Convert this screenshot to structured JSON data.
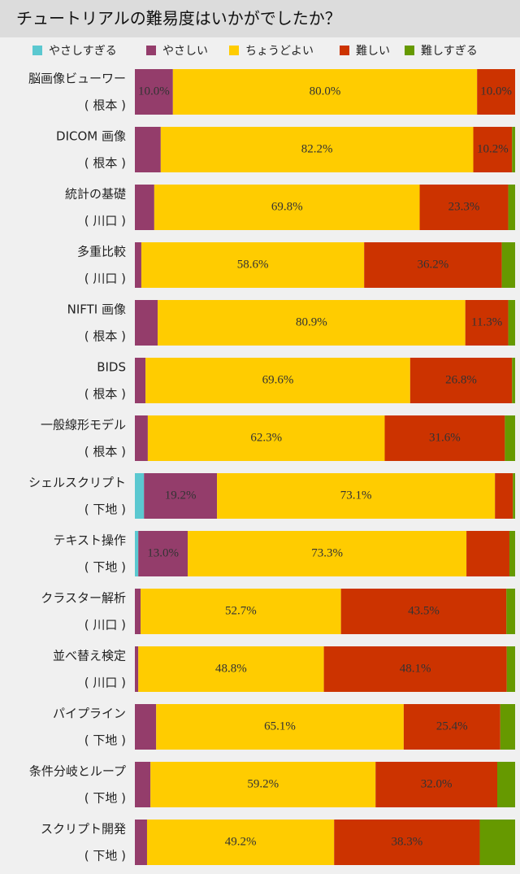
{
  "chart_data": {
    "type": "stacked_barh",
    "title": "チュートリアルの難易度はいかがでしたか？",
    "categories": [
      "脳画像ビューワー",
      "DICOM 画像",
      "統計の基礎",
      "多重比較",
      "NIFTI 画像",
      "BIDS",
      "一般線形モデル",
      "シェルスクリプト",
      "テキスト操作",
      "クラスター解析",
      "並べ替え検定",
      "パイプライン",
      "条件分岐とループ",
      "スクリプト開発"
    ],
    "sublabels": [
      "( 根本 )",
      "( 根本 )",
      "( 川口 )",
      "( 川口 )",
      "( 根本 )",
      "( 根本 )",
      "( 根本 )",
      "( 下地 )",
      "( 下地 )",
      "( 川口 )",
      "( 川口 )",
      "( 下地 )",
      "( 下地 )",
      "( 下地 )"
    ],
    "xlim": [
      0,
      100
    ],
    "series": [
      {
        "name": "やさしすぎる",
        "color": "#5bc8d0",
        "values": [
          0,
          0,
          0,
          0,
          0,
          0,
          0,
          2.4,
          0.9,
          0,
          0,
          0,
          0,
          0
        ],
        "value_labels": [
          null,
          null,
          null,
          null,
          null,
          null,
          null,
          null,
          null,
          null,
          null,
          null,
          null,
          null
        ]
      },
      {
        "name": "やさしい",
        "color": "#943d6b",
        "values": [
          10.0,
          6.8,
          5.1,
          1.7,
          6.0,
          2.8,
          3.4,
          19.2,
          13.0,
          1.5,
          0.9,
          5.6,
          4.1,
          3.2
        ],
        "value_labels": [
          "10.0%",
          null,
          null,
          null,
          null,
          null,
          null,
          "19.2%",
          "13.0%",
          null,
          null,
          null,
          null,
          null
        ]
      },
      {
        "name": "ちょうどよい",
        "color": "#ffcc00",
        "values": [
          80.0,
          82.2,
          69.8,
          58.6,
          80.9,
          69.6,
          62.3,
          73.1,
          73.3,
          52.7,
          48.8,
          65.1,
          59.2,
          49.2
        ],
        "value_labels": [
          "80.0%",
          "82.2%",
          "69.8%",
          "58.6%",
          "80.9%",
          "69.6%",
          "62.3%",
          "73.1%",
          "73.3%",
          "52.7%",
          "48.8%",
          "65.1%",
          "59.2%",
          "49.2%"
        ]
      },
      {
        "name": "難しい",
        "color": "#cc3300",
        "values": [
          10.0,
          10.2,
          23.3,
          36.2,
          11.3,
          26.8,
          31.6,
          4.7,
          11.3,
          43.5,
          48.1,
          25.4,
          32.0,
          38.3
        ],
        "value_labels": [
          "10.0%",
          "10.2%",
          "23.3%",
          "36.2%",
          "11.3%",
          "26.8%",
          "31.6%",
          null,
          null,
          "43.5%",
          "48.1%",
          "25.4%",
          "32.0%",
          "38.3%"
        ]
      },
      {
        "name": "難しすぎる",
        "color": "#669900",
        "values": [
          0,
          0.8,
          1.8,
          3.5,
          1.8,
          0.8,
          2.7,
          0.6,
          1.5,
          2.3,
          2.2,
          3.9,
          4.7,
          9.3
        ],
        "value_labels": [
          null,
          null,
          null,
          null,
          null,
          null,
          null,
          null,
          null,
          null,
          null,
          null,
          null,
          null
        ]
      }
    ]
  }
}
